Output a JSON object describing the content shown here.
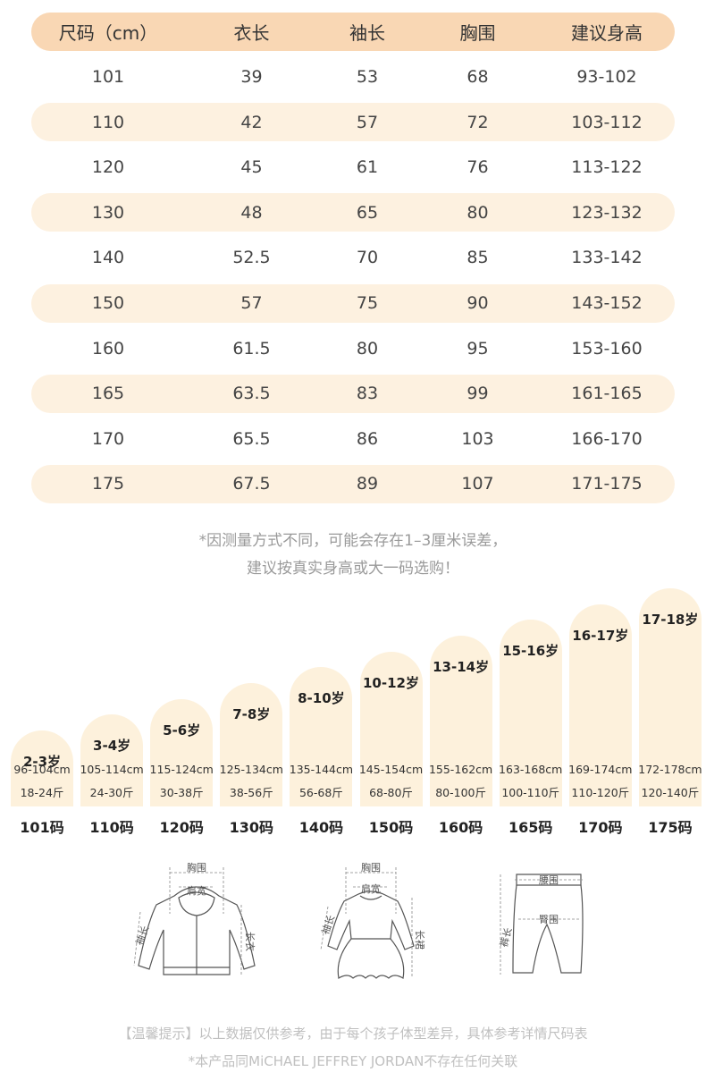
{
  "table": {
    "headers": [
      "尺码（cm）",
      "衣长",
      "袖长",
      "胸围",
      "建议身高"
    ],
    "rows": [
      [
        "101",
        "39",
        "53",
        "68",
        "93-102"
      ],
      [
        "110",
        "42",
        "57",
        "72",
        "103-112"
      ],
      [
        "120",
        "45",
        "61",
        "76",
        "113-122"
      ],
      [
        "130",
        "48",
        "65",
        "80",
        "123-132"
      ],
      [
        "140",
        "52.5",
        "70",
        "85",
        "133-142"
      ],
      [
        "150",
        "57",
        "75",
        "90",
        "143-152"
      ],
      [
        "160",
        "61.5",
        "80",
        "95",
        "153-160"
      ],
      [
        "165",
        "63.5",
        "83",
        "99",
        "161-165"
      ],
      [
        "170",
        "65.5",
        "86",
        "103",
        "166-170"
      ],
      [
        "175",
        "67.5",
        "89",
        "107",
        "171-175"
      ]
    ]
  },
  "note": {
    "line1": "*因测量方式不同，可能会存在1–3厘米误差，",
    "line2": "建议按真实身高或大一码选购！"
  },
  "size_chart": [
    {
      "age": "2-3岁",
      "height": "96-104cm",
      "weight": "18-24斤",
      "code": "101码"
    },
    {
      "age": "3-4岁",
      "height": "105-114cm",
      "weight": "24-30斤",
      "code": "110码"
    },
    {
      "age": "5-6岁",
      "height": "115-124cm",
      "weight": "30-38斤",
      "code": "120码"
    },
    {
      "age": "7-8岁",
      "height": "125-134cm",
      "weight": "38-56斤",
      "code": "130码"
    },
    {
      "age": "8-10岁",
      "height": "135-144cm",
      "weight": "56-68斤",
      "code": "140码"
    },
    {
      "age": "10-12岁",
      "height": "145-154cm",
      "weight": "68-80斤",
      "code": "150码"
    },
    {
      "age": "13-14岁",
      "height": "155-162cm",
      "weight": "80-100斤",
      "code": "160码"
    },
    {
      "age": "15-16岁",
      "height": "163-168cm",
      "weight": "100-110斤",
      "code": "165码"
    },
    {
      "age": "16-17岁",
      "height": "169-174cm",
      "weight": "110-120斤",
      "code": "170码"
    },
    {
      "age": "17-18岁",
      "height": "172-178cm",
      "weight": "120-140斤",
      "code": "175码"
    }
  ],
  "diagrams": {
    "jacket": {
      "chest": "胸围",
      "shoulder": "肩宽",
      "sleeve": "袖长",
      "length": "长衣"
    },
    "dress": {
      "chest": "胸围",
      "shoulder": "肩宽",
      "sleeve": "袖长",
      "length": "长裙"
    },
    "pants": {
      "waist": "腰围",
      "hip": "臀围",
      "length": "裤长"
    }
  },
  "footer": {
    "line1": "【温馨提示】以上数据仅供参考，由于每个孩子体型差异，具体参考详情尺码表",
    "line2": "*本产品同MiCHAEL JEFFREY JORDAN不存在任何关联"
  },
  "colors": {
    "header": "#f9d7b4",
    "alt_row": "#fdf1e0",
    "bar": "#fdf1dc"
  }
}
